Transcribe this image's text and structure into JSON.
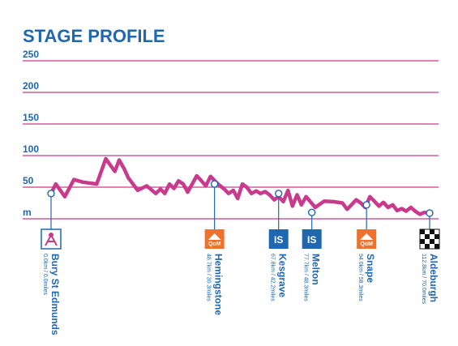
{
  "chart_data": {
    "type": "line",
    "title": "STAGE PROFILE",
    "yunit": "m",
    "y_ticks": [
      50,
      100,
      150,
      200,
      250
    ],
    "ylim": [
      0,
      250
    ],
    "xlim": [
      0,
      112.8
    ],
    "grid": true,
    "line_color": "#c93a8c",
    "accent_color": "#1f67b1",
    "series": [
      {
        "x": [
          0,
          1.4,
          4.1,
          6.8,
          9.5,
          13.6,
          16.3,
          19.0,
          20.3,
          21.7,
          23.0,
          25.8,
          28.5,
          31.2,
          32.6,
          33.9,
          35.3,
          36.6,
          38.0,
          39.4,
          40.7,
          43.4,
          44.8,
          46.1,
          47.5,
          48.8,
          50.2,
          51.6,
          52.9,
          54.3,
          55.6,
          57.0,
          58.3,
          59.7,
          61.1,
          62.4,
          63.8,
          65.1,
          66.5,
          67.8,
          69.2,
          70.6,
          71.9,
          73.3,
          74.6,
          76.0,
          78.7,
          81.4,
          84.1,
          86.8,
          88.2,
          89.5,
          90.9,
          92.3,
          93.6,
          95.0,
          96.3,
          97.7,
          99.0,
          100.4,
          101.8,
          103.1,
          104.5,
          105.8,
          107.2,
          108.5,
          109.9,
          111.2,
          112.8
        ],
        "y": [
          40,
          55,
          35,
          62,
          58,
          55,
          95,
          75,
          93,
          80,
          65,
          45,
          52,
          40,
          47,
          40,
          55,
          48,
          60,
          55,
          42,
          68,
          60,
          52,
          67,
          60,
          53,
          47,
          40,
          45,
          32,
          55,
          50,
          40,
          44,
          40,
          43,
          38,
          30,
          35,
          27,
          45,
          20,
          38,
          22,
          35,
          18,
          28,
          27,
          25,
          15,
          22,
          30,
          25,
          18,
          35,
          28,
          20,
          26,
          18,
          22,
          13,
          16,
          12,
          18,
          12,
          7,
          10,
          9
        ]
      }
    ]
  },
  "towns": [
    {
      "name": "Bury St Edmunds",
      "dist": "0.0km / 0.0miles",
      "icon": "start-flag-icon",
      "km": 0,
      "alt": 40
    },
    {
      "name": "Hemingstone",
      "dist": "48.7km / 30.3miles",
      "icon": "qom-icon",
      "icon_text": "QoM",
      "km": 48.7,
      "alt": 55
    },
    {
      "name": "Kesgrave",
      "dist": "67.8km / 42.2miles",
      "icon": "intermediate-sprint-icon",
      "icon_text": "IS",
      "km": 67.8,
      "alt": 40
    },
    {
      "name": "Melton",
      "dist": "77.7km / 48.3miles",
      "icon": "intermediate-sprint-icon",
      "icon_text": "IS",
      "km": 77.7,
      "alt": 10
    },
    {
      "name": "Snape",
      "dist": "94.0km / 58.3miles",
      "icon": "qom-icon",
      "icon_text": "QoM",
      "km": 94.0,
      "alt": 22
    },
    {
      "name": "Aldeburgh",
      "dist": "112.8km / 70.0miles",
      "icon": "finish-flag-icon",
      "km": 112.8,
      "alt": 9
    }
  ]
}
